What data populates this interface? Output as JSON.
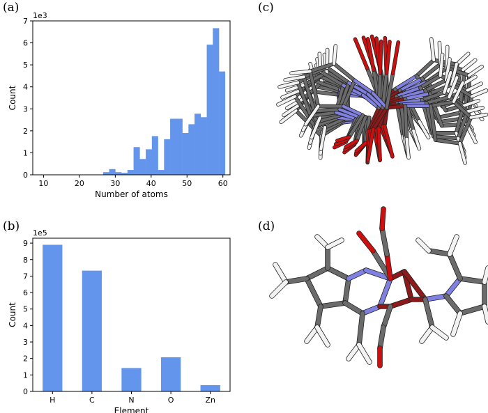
{
  "panels": {
    "a": "(a)",
    "b": "(b)",
    "c": "(c)",
    "d": "(d)"
  },
  "colors": {
    "bar": "#6495ed",
    "carbon": "#6b6b6b",
    "hydrogen": "#f2f2f2",
    "nitrogen": "#8080e0",
    "oxygen": "#cc1010",
    "zinc": "#8b1a1a"
  },
  "chart_data": [
    {
      "type": "bar",
      "xlabel": "Number of atoms",
      "ylabel": "Count",
      "multiplier_label": "1e3",
      "xlim": [
        7,
        62
      ],
      "ylim": [
        0,
        7
      ],
      "xticks": [
        10,
        20,
        30,
        40,
        50,
        60
      ],
      "yticks": [
        0,
        1,
        2,
        3,
        4,
        5,
        6,
        7
      ],
      "bin_width": 1.7,
      "bins": [
        {
          "x": 26.6,
          "value": 0.12
        },
        {
          "x": 28.3,
          "value": 0.26
        },
        {
          "x": 30.0,
          "value": 0.12
        },
        {
          "x": 31.7,
          "value": 0.09
        },
        {
          "x": 33.4,
          "value": 0.22
        },
        {
          "x": 35.1,
          "value": 1.26
        },
        {
          "x": 36.8,
          "value": 0.72
        },
        {
          "x": 38.5,
          "value": 1.16
        },
        {
          "x": 40.2,
          "value": 1.76
        },
        {
          "x": 41.9,
          "value": 0.22
        },
        {
          "x": 43.6,
          "value": 1.62
        },
        {
          "x": 45.3,
          "value": 2.55
        },
        {
          "x": 47.0,
          "value": 2.55
        },
        {
          "x": 48.7,
          "value": 1.9
        },
        {
          "x": 50.4,
          "value": 2.3
        },
        {
          "x": 52.1,
          "value": 2.78
        },
        {
          "x": 53.8,
          "value": 2.62
        },
        {
          "x": 55.5,
          "value": 5.92
        },
        {
          "x": 57.2,
          "value": 6.67
        },
        {
          "x": 58.9,
          "value": 4.7
        }
      ]
    },
    {
      "type": "bar",
      "xlabel": "Element",
      "ylabel": "Count",
      "multiplier_label": "1e5",
      "ylim": [
        0,
        9.3
      ],
      "yticks": [
        0,
        1,
        2,
        3,
        4,
        5,
        6,
        7,
        8,
        9
      ],
      "categories": [
        "H",
        "C",
        "N",
        "O",
        "Zn"
      ],
      "values": [
        8.9,
        7.33,
        1.42,
        2.07,
        0.38
      ]
    }
  ]
}
